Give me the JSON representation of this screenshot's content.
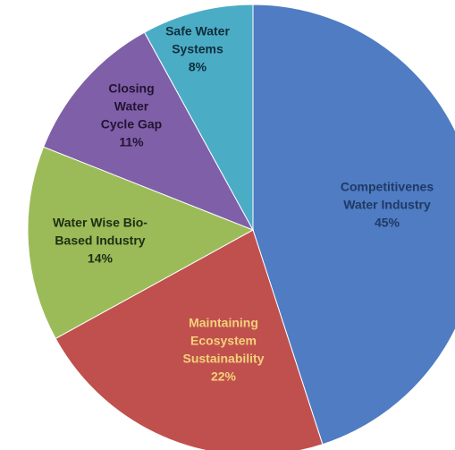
{
  "chart_data": {
    "type": "pie",
    "title": "",
    "start_angle_deg": 0,
    "direction": "clockwise",
    "slices": [
      {
        "name": "Competitiveness Water Industry",
        "value": 45,
        "color": "#4F7CC2",
        "label_lines": [
          "Competitivenes",
          "Water Industry",
          "45%"
        ],
        "label_color": "#1F3A66"
      },
      {
        "name": "Maintaining Ecosystem Sustainability",
        "value": 22,
        "color": "#C0504D",
        "label_lines": [
          "Maintaining",
          "Ecosystem",
          "Sustainability",
          "22%"
        ],
        "label_color": "#F3D17A"
      },
      {
        "name": "Water Wise Bio-Based Industry",
        "value": 14,
        "color": "#9BBB59",
        "label_lines": [
          "Water Wise Bio-",
          "Based Industry",
          "14%"
        ],
        "label_color": "#1E2E12"
      },
      {
        "name": "Closing Water Cycle Gap",
        "value": 11,
        "color": "#7F5FA8",
        "label_lines": [
          "Closing",
          "Water",
          "Cycle Gap",
          "11%"
        ],
        "label_color": "#221433"
      },
      {
        "name": "Safe Water Systems",
        "value": 8,
        "color": "#4BACC6",
        "label_lines": [
          "Safe Water",
          "Systems",
          "8%"
        ],
        "label_color": "#0F2E3A"
      }
    ]
  }
}
